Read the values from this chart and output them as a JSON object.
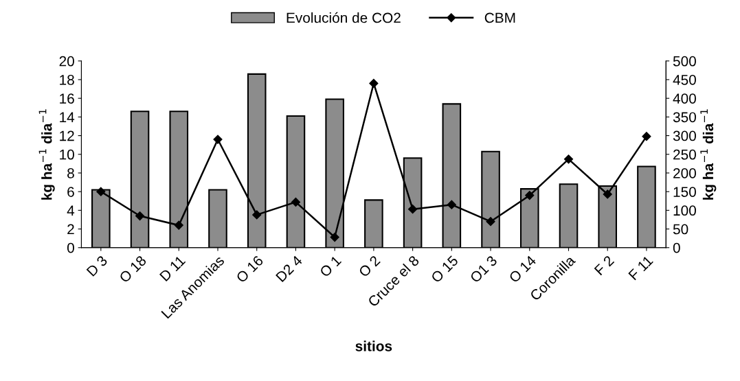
{
  "chart_data": {
    "type": "bar",
    "xlabel": "sitios",
    "ylabel": "kg ha$^{−1}$ dia$^{−1}$",
    "y2label": "kg ha$^{−1}$ dia$^{−1}$",
    "categories": [
      "D 3",
      "O 18",
      "D 11",
      "Las Anomias",
      "O 16",
      "D2 4",
      "O 1",
      "O 2",
      "Cruce el 8",
      "O 15",
      "O1 3",
      "O 14",
      "Coronilla",
      "F 2",
      "F 11"
    ],
    "series": [
      {
        "name": "Evolución de CO2",
        "color": "#8c8c8c",
        "values": [
          6.2,
          14.6,
          14.6,
          6.2,
          18.6,
          14.1,
          15.9,
          5.1,
          9.6,
          15.4,
          10.3,
          6.3,
          6.8,
          6.6,
          8.7
        ]
      },
      {
        "name": "CBM",
        "type": "line",
        "axis": "y2",
        "color": "#000000",
        "marker": "diamond",
        "values": [
          150,
          85,
          60,
          290,
          88,
          122,
          28,
          440,
          103,
          115,
          70,
          140,
          237,
          143,
          298
        ]
      }
    ],
    "ylim": [
      0,
      20
    ],
    "yticks": [
      0,
      2,
      4,
      6,
      8,
      10,
      12,
      14,
      16,
      18,
      20
    ],
    "y2lim": [
      0,
      500
    ],
    "y2ticks": [
      0,
      50,
      100,
      150,
      200,
      250,
      300,
      350,
      400,
      450,
      500
    ],
    "legend": "top",
    "grid": false
  }
}
